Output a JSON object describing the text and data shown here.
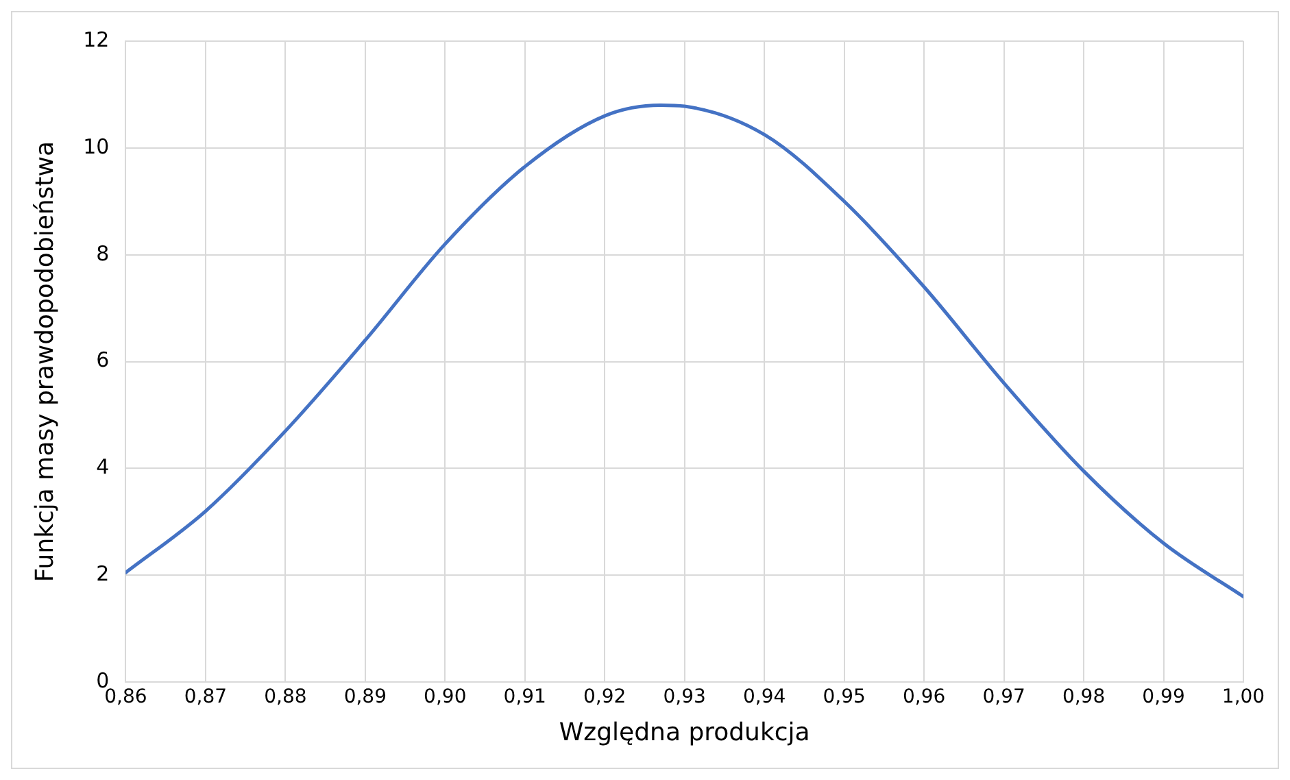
{
  "chart_data": {
    "type": "line",
    "xlabel": "Względna produkcja",
    "ylabel": "Funkcja masy prawdopodobieństwa",
    "x": [
      0.86,
      0.87,
      0.88,
      0.89,
      0.9,
      0.91,
      0.92,
      0.927,
      0.93,
      0.94,
      0.95,
      0.96,
      0.97,
      0.98,
      0.99,
      1.0
    ],
    "series": [
      {
        "color": "#4472c4",
        "values": [
          2.05,
          3.2,
          4.7,
          6.4,
          8.2,
          9.65,
          10.6,
          10.8,
          10.78,
          10.25,
          9.0,
          7.4,
          5.6,
          3.95,
          2.6,
          1.6
        ]
      }
    ],
    "xlim": [
      0.86,
      1.0
    ],
    "xticks": [
      {
        "value": 0.86,
        "label": "0,86"
      },
      {
        "value": 0.87,
        "label": "0,87"
      },
      {
        "value": 0.88,
        "label": "0,88"
      },
      {
        "value": 0.89,
        "label": "0,89"
      },
      {
        "value": 0.9,
        "label": "0,90"
      },
      {
        "value": 0.91,
        "label": "0,91"
      },
      {
        "value": 0.92,
        "label": "0,92"
      },
      {
        "value": 0.93,
        "label": "0,93"
      },
      {
        "value": 0.94,
        "label": "0,94"
      },
      {
        "value": 0.95,
        "label": "0,95"
      },
      {
        "value": 0.96,
        "label": "0,96"
      },
      {
        "value": 0.97,
        "label": "0,97"
      },
      {
        "value": 0.98,
        "label": "0,98"
      },
      {
        "value": 0.99,
        "label": "0,99"
      },
      {
        "value": 1.0,
        "label": "1,00"
      }
    ],
    "ylim": [
      0,
      12
    ],
    "yticks": [
      0,
      2,
      4,
      6,
      8,
      10,
      12
    ],
    "grid": true,
    "legend": false,
    "marker": "none",
    "line_style": "solid"
  }
}
